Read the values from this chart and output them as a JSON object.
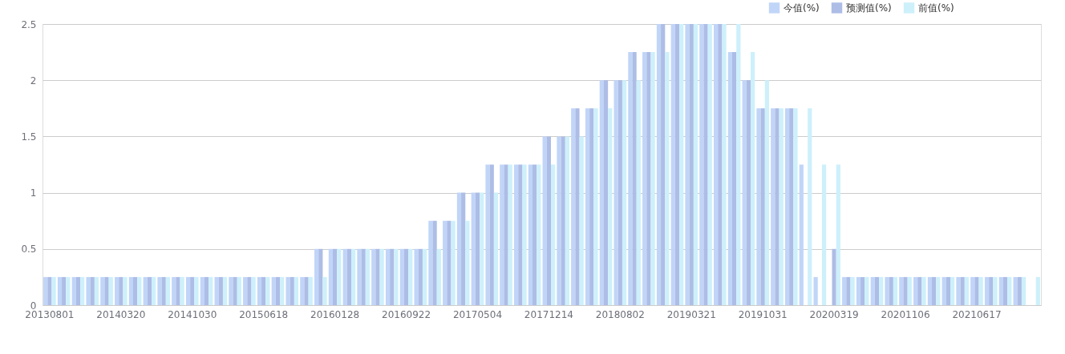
{
  "chart_data": {
    "type": "bar",
    "categories": [
      "20130801",
      null,
      null,
      null,
      null,
      "20140320",
      null,
      null,
      null,
      null,
      "20141030",
      null,
      null,
      null,
      null,
      "20150618",
      null,
      null,
      null,
      null,
      "20160128",
      null,
      null,
      null,
      null,
      "20160922",
      null,
      null,
      null,
      null,
      "20170504",
      null,
      null,
      null,
      null,
      "20171214",
      null,
      null,
      null,
      null,
      "20180802",
      null,
      null,
      null,
      null,
      "20190321",
      null,
      null,
      null,
      null,
      "20191031",
      null,
      null,
      null,
      null,
      "20200319",
      null,
      null,
      null,
      null,
      "20201106",
      null,
      null,
      null,
      null,
      "20210617",
      null,
      null,
      null,
      null
    ],
    "series": [
      {
        "name": "今值(%)",
        "color": "#c1d5f8",
        "values": [
          0.25,
          0.25,
          0.25,
          0.25,
          0.25,
          0.25,
          0.25,
          0.25,
          0.25,
          0.25,
          0.25,
          0.25,
          0.25,
          0.25,
          0.25,
          0.25,
          0.25,
          0.25,
          0.25,
          0.5,
          0.5,
          0.5,
          0.5,
          0.5,
          0.5,
          0.5,
          0.5,
          0.75,
          0.75,
          1,
          1,
          1.25,
          1.25,
          1.25,
          1.25,
          1.5,
          1.5,
          1.75,
          1.75,
          2,
          2,
          2.25,
          2.25,
          2.5,
          2.5,
          2.5,
          2.5,
          2.5,
          2.25,
          2,
          1.75,
          1.75,
          1.75,
          1.25,
          0.25,
          null,
          0.25,
          0.25,
          0.25,
          0.25,
          0.25,
          0.25,
          0.25,
          0.25,
          0.25,
          0.25,
          0.25,
          0.25,
          0.25,
          null
        ]
      },
      {
        "name": "预测值(%)",
        "color": "#adbde6",
        "values": [
          0.25,
          0.25,
          0.25,
          0.25,
          0.25,
          0.25,
          0.25,
          0.25,
          0.25,
          0.25,
          0.25,
          0.25,
          0.25,
          0.25,
          0.25,
          0.25,
          0.25,
          0.25,
          0.25,
          0.5,
          0.5,
          0.5,
          0.5,
          0.5,
          0.5,
          0.5,
          0.5,
          0.75,
          0.75,
          1,
          1,
          1.25,
          1.25,
          1.25,
          1.25,
          1.5,
          1.5,
          1.75,
          1.75,
          2,
          2,
          2.25,
          2.25,
          2.5,
          2.5,
          2.5,
          2.5,
          2.5,
          2.25,
          2,
          1.75,
          1.75,
          1.75,
          null,
          null,
          0.5,
          0.25,
          0.25,
          0.25,
          0.25,
          0.25,
          0.25,
          0.25,
          0.25,
          0.25,
          0.25,
          0.25,
          0.25,
          0.25,
          null
        ]
      },
      {
        "name": "前值(%)",
        "color": "#cdf0fb",
        "values": [
          0.25,
          0.25,
          0.25,
          0.25,
          0.25,
          0.25,
          0.25,
          0.25,
          0.25,
          0.25,
          0.25,
          0.25,
          0.25,
          0.25,
          0.25,
          0.25,
          0.25,
          0.25,
          0.25,
          0.25,
          0.5,
          0.5,
          0.5,
          0.5,
          0.5,
          0.5,
          0.5,
          0.5,
          0.75,
          0.75,
          1,
          1,
          1.25,
          1.25,
          1.25,
          1.25,
          1.5,
          1.5,
          1.75,
          1.75,
          2,
          2,
          2.25,
          2.25,
          2.5,
          2.5,
          2.5,
          2.5,
          2.5,
          2.25,
          2,
          1.75,
          1.75,
          1.75,
          1.25,
          1.25,
          0.25,
          0.25,
          0.25,
          0.25,
          0.25,
          0.25,
          0.25,
          0.25,
          0.25,
          0.25,
          0.25,
          0.25,
          0.25,
          0.25
        ]
      }
    ],
    "ylim": [
      0,
      2.5
    ],
    "yticks": [
      0,
      0.5,
      1,
      1.5,
      2,
      2.5
    ],
    "grid": "y",
    "legend": "top right"
  }
}
